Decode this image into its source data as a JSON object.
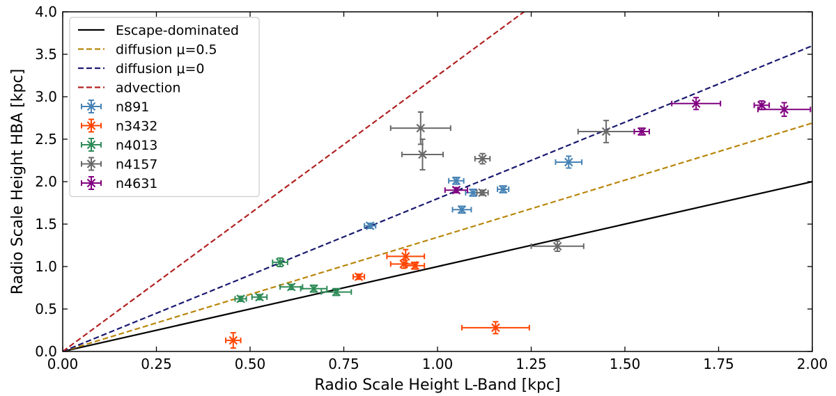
{
  "chart_data": {
    "type": "scatter",
    "xlabel": "Radio Scale Height L-Band [kpc]",
    "ylabel": "Radio Scale Height HBA [kpc]",
    "xlim": [
      0.0,
      2.0
    ],
    "ylim": [
      0.0,
      4.0
    ],
    "xticks": [
      "0.00",
      "0.25",
      "0.50",
      "0.75",
      "1.00",
      "1.25",
      "1.50",
      "1.75",
      "2.00"
    ],
    "yticks": [
      "0.0",
      "0.5",
      "1.0",
      "1.5",
      "2.0",
      "2.5",
      "3.0",
      "3.5",
      "4.0"
    ],
    "grid": false,
    "legend_position": "top-left",
    "lines": [
      {
        "name": "Escape-dominated",
        "slope": 1.0,
        "color": "#000000",
        "style": "solid"
      },
      {
        "name": "diffusion μ=0.5",
        "slope": 1.345,
        "color": "#b8860b",
        "style": "dashed"
      },
      {
        "name": "diffusion μ=0",
        "slope": 1.8,
        "color": "#191970",
        "style": "dashed"
      },
      {
        "name": "advection",
        "slope": 3.25,
        "color": "#b22222",
        "style": "dashed"
      }
    ],
    "series": [
      {
        "name": "n891",
        "color": "#4682b4",
        "points": [
          {
            "x": 0.82,
            "y": 1.48,
            "xerr": 0.015,
            "yerr": 0.03
          },
          {
            "x": 1.05,
            "y": 2.01,
            "xerr": 0.02,
            "yerr": 0.04
          },
          {
            "x": 1.065,
            "y": 1.67,
            "xerr": 0.025,
            "yerr": 0.04
          },
          {
            "x": 1.095,
            "y": 1.87,
            "xerr": 0.02,
            "yerr": 0.04
          },
          {
            "x": 1.175,
            "y": 1.91,
            "xerr": 0.015,
            "yerr": 0.04
          },
          {
            "x": 1.35,
            "y": 2.23,
            "xerr": 0.035,
            "yerr": 0.07
          }
        ]
      },
      {
        "name": "n3432",
        "color": "#ff4500",
        "points": [
          {
            "x": 0.455,
            "y": 0.13,
            "xerr": 0.02,
            "yerr": 0.09
          },
          {
            "x": 0.79,
            "y": 0.88,
            "xerr": 0.015,
            "yerr": 0.03
          },
          {
            "x": 0.91,
            "y": 1.03,
            "xerr": 0.035,
            "yerr": 0.05
          },
          {
            "x": 0.915,
            "y": 1.12,
            "xerr": 0.05,
            "yerr": 0.08
          },
          {
            "x": 0.94,
            "y": 1.01,
            "xerr": 0.025,
            "yerr": 0.04
          },
          {
            "x": 1.155,
            "y": 0.28,
            "xerr": 0.09,
            "yerr": 0.07
          }
        ]
      },
      {
        "name": "n4013",
        "color": "#2e8b57",
        "points": [
          {
            "x": 0.475,
            "y": 0.62,
            "xerr": 0.015,
            "yerr": 0.03
          },
          {
            "x": 0.525,
            "y": 0.64,
            "xerr": 0.02,
            "yerr": 0.03
          },
          {
            "x": 0.58,
            "y": 1.05,
            "xerr": 0.02,
            "yerr": 0.05
          },
          {
            "x": 0.61,
            "y": 0.76,
            "xerr": 0.03,
            "yerr": 0.03
          },
          {
            "x": 0.67,
            "y": 0.74,
            "xerr": 0.035,
            "yerr": 0.04
          },
          {
            "x": 0.73,
            "y": 0.7,
            "xerr": 0.04,
            "yerr": 0.04
          }
        ]
      },
      {
        "name": "n4157",
        "color": "#696969",
        "points": [
          {
            "x": 0.955,
            "y": 2.63,
            "xerr": 0.08,
            "yerr": 0.19
          },
          {
            "x": 0.96,
            "y": 2.32,
            "xerr": 0.055,
            "yerr": 0.18
          },
          {
            "x": 1.12,
            "y": 2.27,
            "xerr": 0.02,
            "yerr": 0.06
          },
          {
            "x": 1.12,
            "y": 1.87,
            "xerr": 0.015,
            "yerr": 0.03
          },
          {
            "x": 1.32,
            "y": 1.24,
            "xerr": 0.07,
            "yerr": 0.06
          },
          {
            "x": 1.45,
            "y": 2.59,
            "xerr": 0.075,
            "yerr": 0.13
          }
        ]
      },
      {
        "name": "n4631",
        "color": "#800080",
        "points": [
          {
            "x": 1.05,
            "y": 1.9,
            "xerr": 0.03,
            "yerr": 0.03
          },
          {
            "x": 1.545,
            "y": 2.59,
            "xerr": 0.02,
            "yerr": 0.04
          },
          {
            "x": 1.69,
            "y": 2.92,
            "xerr": 0.065,
            "yerr": 0.07
          },
          {
            "x": 1.865,
            "y": 2.9,
            "xerr": 0.02,
            "yerr": 0.05
          },
          {
            "x": 1.925,
            "y": 2.85,
            "xerr": 0.07,
            "yerr": 0.08
          }
        ]
      }
    ]
  }
}
